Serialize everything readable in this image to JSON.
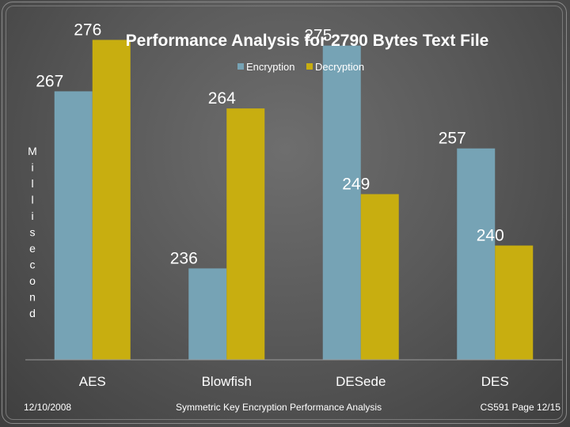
{
  "chart_data": {
    "type": "bar",
    "title": "Performance Analysis  for 2790 Bytes Text File",
    "ylabel": "Millisecond",
    "xlabel": "",
    "categories": [
      "AES",
      "Blowfish",
      "DESede",
      "DES"
    ],
    "series": [
      {
        "name": "Encryption",
        "color": "#76a3b5",
        "values": [
          267,
          236,
          275,
          257
        ]
      },
      {
        "name": "Decryption",
        "color": "#c8ae10",
        "values": [
          276,
          264,
          249,
          240
        ]
      }
    ],
    "ylim": [
      220,
      278
    ],
    "grid": false,
    "legend": "top-center"
  },
  "footer": {
    "date": "12/10/2008",
    "center": "Symmetric Key Encryption Performance Analysis",
    "page": "CS591 Page 12/15"
  }
}
